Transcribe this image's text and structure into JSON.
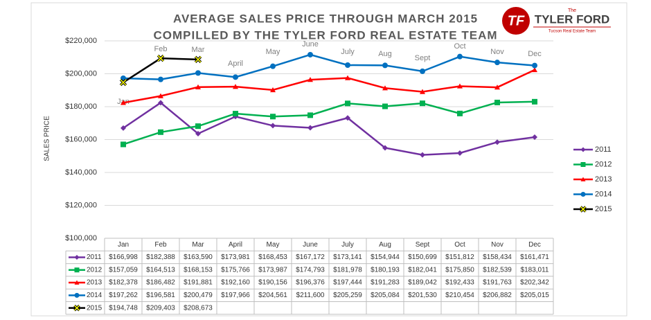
{
  "logo": {
    "initials": "TF",
    "top": "The",
    "name": "TYLER FORD",
    "tagline": "Tucson Real Estate Team"
  },
  "chart_data": {
    "type": "line",
    "title": "AVERAGE SALES PRICE THROUGH MARCH 2015",
    "subtitle": "COMPILLED BY THE TYLER FORD REAL ESTATE TEAM",
    "y_label": "SALES PRICE",
    "categories": [
      "Jan",
      "Feb",
      "Mar",
      "April",
      "May",
      "June",
      "July",
      "Aug",
      "Sept",
      "Oct",
      "Nov",
      "Dec"
    ],
    "ylim": [
      100000,
      220000
    ],
    "yticks": [
      {
        "value": 100000,
        "label": "$100,000"
      },
      {
        "value": 120000,
        "label": "$120,000"
      },
      {
        "value": 140000,
        "label": "$140,000"
      },
      {
        "value": 160000,
        "label": "$160,000"
      },
      {
        "value": 180000,
        "label": "$180,000"
      },
      {
        "value": 200000,
        "label": "$200,000"
      },
      {
        "value": 220000,
        "label": "$220,000"
      }
    ],
    "grid": true,
    "legend": "right",
    "series": [
      {
        "name": "2011",
        "color": "#7030a0",
        "marker": "diamond",
        "values": [
          166998,
          182388,
          163590,
          173981,
          168453,
          167172,
          173141,
          154944,
          150699,
          151812,
          158434,
          161471
        ],
        "value_labels": [
          "$166,998",
          "$182,388",
          "$163,590",
          "$173,981",
          "$168,453",
          "$167,172",
          "$173,141",
          "$154,944",
          "$150,699",
          "$151,812",
          "$158,434",
          "$161,471"
        ]
      },
      {
        "name": "2012",
        "color": "#00b050",
        "marker": "square",
        "values": [
          157059,
          164513,
          168153,
          175766,
          173987,
          174793,
          181978,
          180193,
          182041,
          175850,
          182539,
          183011
        ],
        "value_labels": [
          "$157,059",
          "$164,513",
          "$168,153",
          "$175,766",
          "$173,987",
          "$174,793",
          "$181,978",
          "$180,193",
          "$182,041",
          "$175,850",
          "$182,539",
          "$183,011"
        ]
      },
      {
        "name": "2013",
        "color": "#ff0000",
        "marker": "triangle",
        "values": [
          182378,
          186482,
          191881,
          192160,
          190156,
          196376,
          197444,
          191283,
          189042,
          192433,
          191763,
          202342
        ],
        "value_labels": [
          "$182,378",
          "$186,482",
          "$191,881",
          "$192,160",
          "$190,156",
          "$196,376",
          "$197,444",
          "$191,283",
          "$189,042",
          "$192,433",
          "$191,763",
          "$202,342"
        ]
      },
      {
        "name": "2014",
        "color": "#0070c0",
        "marker": "circle",
        "values": [
          197262,
          196581,
          200479,
          197966,
          204561,
          211600,
          205259,
          205084,
          201530,
          210454,
          206882,
          205015
        ],
        "value_labels": [
          "$197,262",
          "$196,581",
          "$200,479",
          "$197,966",
          "$204,561",
          "$211,600",
          "$205,259",
          "$205,084",
          "$201,530",
          "$210,454",
          "$206,882",
          "$205,015"
        ]
      },
      {
        "name": "2015",
        "color": "#000000",
        "marker": "x",
        "values": [
          194748,
          209403,
          208673,
          null,
          null,
          null,
          null,
          null,
          null,
          null,
          null,
          null
        ],
        "value_labels": [
          "$194,748",
          "$209,403",
          "$208,673",
          null,
          null,
          null,
          null,
          null,
          null,
          null,
          null,
          null
        ]
      }
    ]
  }
}
